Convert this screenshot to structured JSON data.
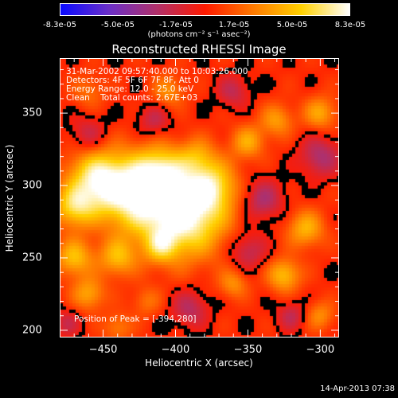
{
  "title": "Reconstructed RHESSI Image",
  "colorbar": {
    "ticks": [
      "-8.3e-05",
      "-5.0e-05",
      "-1.7e-05",
      "1.7e-05",
      "5.0e-05",
      "8.3e-05"
    ],
    "unit_label": "(photons cm⁻² s⁻¹ asec⁻²)",
    "colors": [
      "#0a0aff",
      "#6a2fc8",
      "#b0306a",
      "#ff1a00",
      "#ff7a00",
      "#ffd000",
      "#ffffff"
    ]
  },
  "annotations": {
    "time": "31-Mar-2002 09:57:40.000 to 10:03:26.000",
    "detectors": "Detectors: 4F 5F 6F 7F 8F, Att 0",
    "energy": "Energy Range: 12.0 - 25.0 keV",
    "clean": "Clean    Total counts: 2.67E+03",
    "peak": "Position of Peak = [-394,280]"
  },
  "footer_date": "14-Apr-2013 07:38",
  "chart_data": {
    "type": "heatmap",
    "title": "Reconstructed RHESSI Image",
    "xlabel": "Heliocentric X (arcsec)",
    "ylabel": "Heliocentric Y (arcsec)",
    "xlim": [
      -480,
      -287
    ],
    "ylim": [
      195,
      388
    ],
    "xticks": [
      -450,
      -400,
      -350,
      -300
    ],
    "yticks": [
      200,
      250,
      300,
      350
    ],
    "colorbar_range": [
      -8.3e-05,
      8.3e-05
    ],
    "peak_position": [
      -394,
      280
    ],
    "sources": [
      {
        "x": -394,
        "y": 280,
        "amp": 1.0,
        "s": 20
      },
      {
        "x": -430,
        "y": 295,
        "amp": 0.85,
        "s": 18
      },
      {
        "x": -455,
        "y": 305,
        "amp": 0.7,
        "s": 14
      },
      {
        "x": -470,
        "y": 285,
        "amp": 0.6,
        "s": 10
      },
      {
        "x": -410,
        "y": 310,
        "amp": 0.55,
        "s": 12
      },
      {
        "x": -375,
        "y": 300,
        "amp": 0.55,
        "s": 12
      },
      {
        "x": -385,
        "y": 320,
        "amp": 0.35,
        "s": 9
      },
      {
        "x": -440,
        "y": 250,
        "amp": 0.5,
        "s": 9
      },
      {
        "x": -470,
        "y": 250,
        "amp": 0.55,
        "s": 9
      },
      {
        "x": -460,
        "y": 225,
        "amp": 0.45,
        "s": 8
      },
      {
        "x": -410,
        "y": 258,
        "amp": 0.45,
        "s": 8
      },
      {
        "x": -350,
        "y": 330,
        "amp": 0.45,
        "s": 8
      },
      {
        "x": -330,
        "y": 345,
        "amp": 0.4,
        "s": 8
      },
      {
        "x": -300,
        "y": 350,
        "amp": 0.45,
        "s": 8
      },
      {
        "x": -310,
        "y": 270,
        "amp": 0.5,
        "s": 9
      },
      {
        "x": -325,
        "y": 238,
        "amp": 0.55,
        "s": 8
      },
      {
        "x": -360,
        "y": 232,
        "amp": 0.35,
        "s": 7
      },
      {
        "x": -300,
        "y": 210,
        "amp": 0.35,
        "s": 7
      },
      {
        "x": -405,
        "y": 365,
        "amp": 0.35,
        "s": 8
      },
      {
        "x": -460,
        "y": 365,
        "amp": 0.25,
        "s": 8
      },
      {
        "x": -440,
        "y": 202,
        "amp": 0.3,
        "s": 7
      },
      {
        "x": -420,
        "y": 220,
        "amp": 0.25,
        "s": 7
      },
      {
        "x": -340,
        "y": 290,
        "amp": -0.4,
        "s": 10
      },
      {
        "x": -350,
        "y": 255,
        "amp": -0.35,
        "s": 9
      },
      {
        "x": -300,
        "y": 320,
        "amp": -0.4,
        "s": 10
      },
      {
        "x": -390,
        "y": 215,
        "amp": -0.35,
        "s": 9
      },
      {
        "x": -460,
        "y": 335,
        "amp": -0.3,
        "s": 9
      },
      {
        "x": -360,
        "y": 365,
        "amp": -0.3,
        "s": 8
      },
      {
        "x": -415,
        "y": 345,
        "amp": -0.3,
        "s": 8
      },
      {
        "x": -320,
        "y": 210,
        "amp": -0.3,
        "s": 7
      },
      {
        "x": -475,
        "y": 205,
        "amp": -0.25,
        "s": 7
      }
    ]
  }
}
